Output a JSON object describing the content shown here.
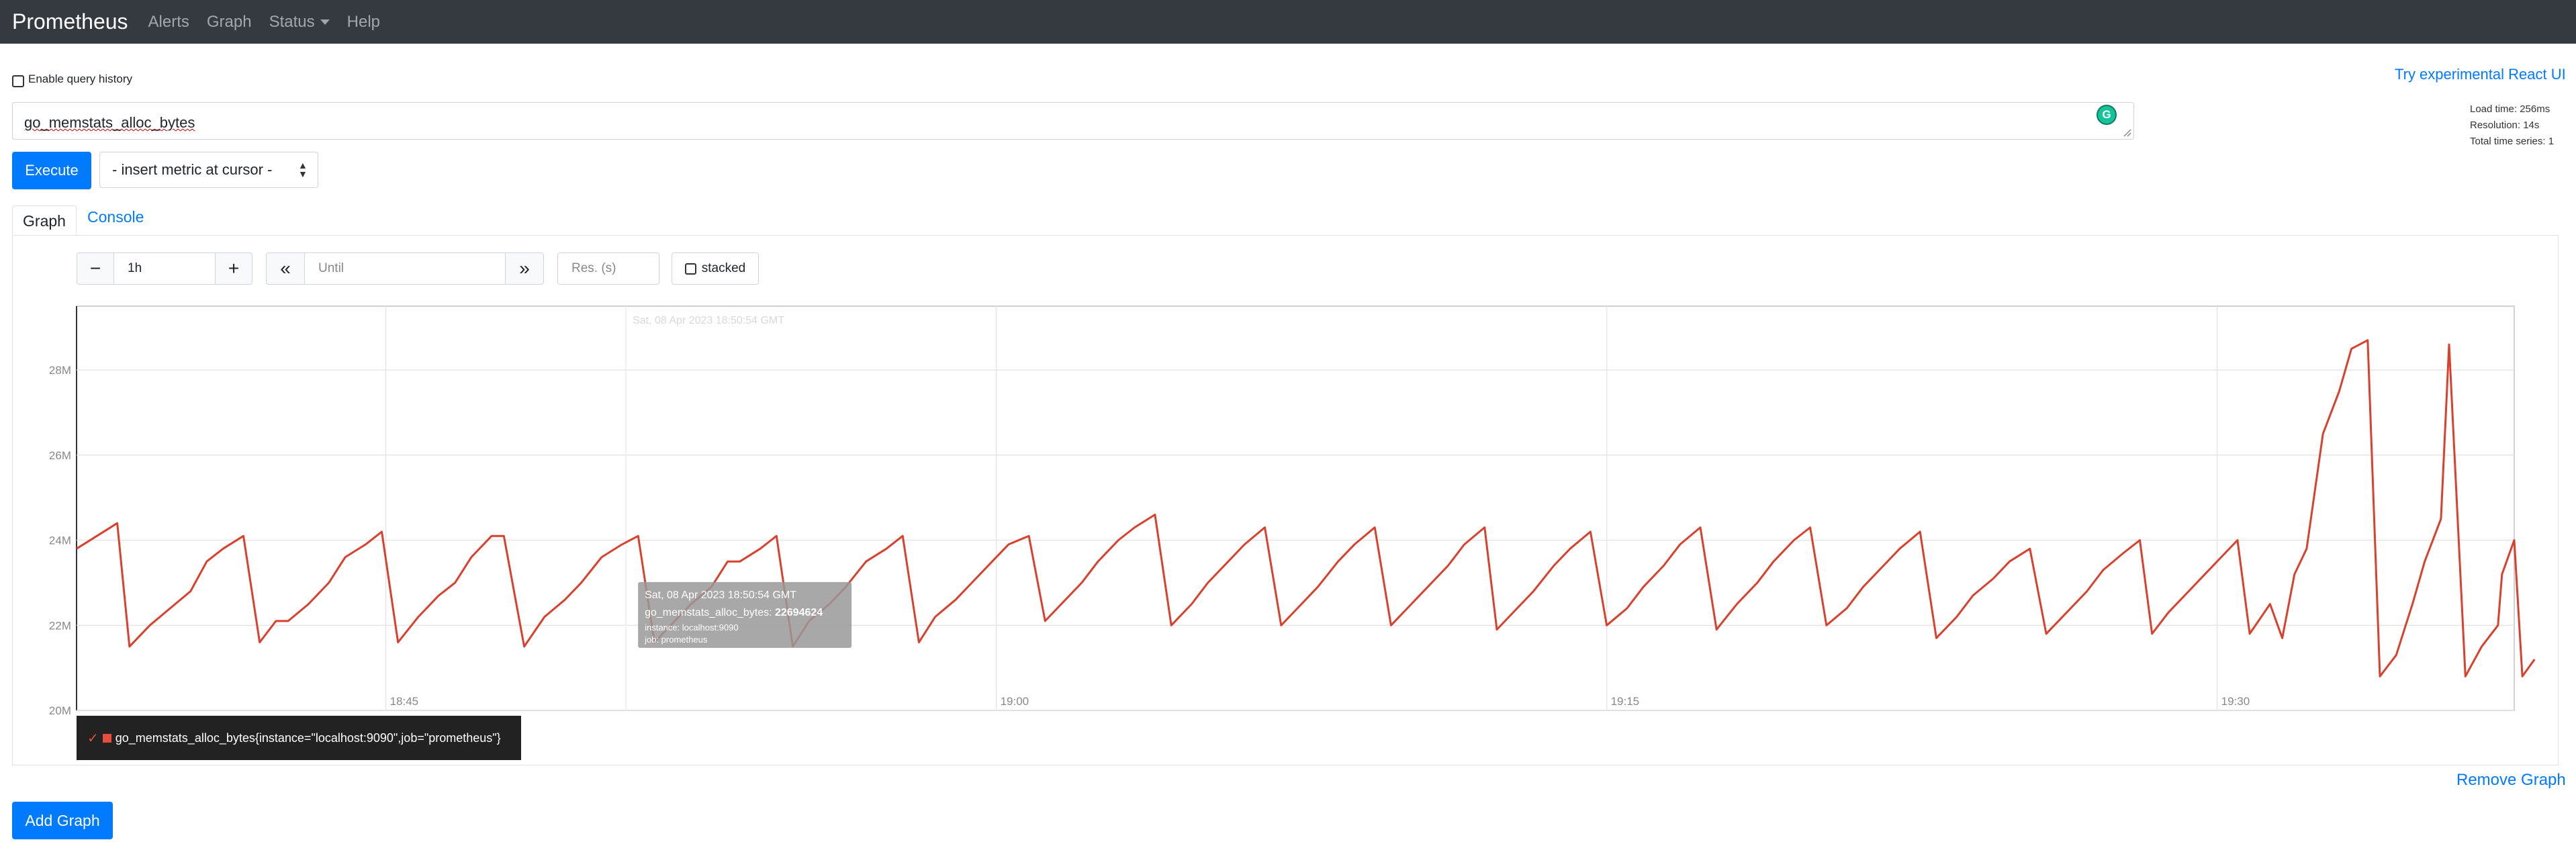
{
  "navbar": {
    "brand": "Prometheus",
    "links": [
      "Alerts",
      "Graph",
      "Status",
      "Help"
    ]
  },
  "query_history_label": "Enable query history",
  "react_ui_link": "Try experimental React UI",
  "stats": {
    "load_time": "Load time: 256ms",
    "resolution": "Resolution: 14s",
    "total_series": "Total time series: 1"
  },
  "expression": "go_memstats_alloc_bytes",
  "execute_label": "Execute",
  "metric_select": "- insert metric at cursor -",
  "tabs": {
    "graph": "Graph",
    "console": "Console"
  },
  "controls": {
    "minus": "−",
    "range": "1h",
    "plus": "+",
    "back": "«",
    "until_placeholder": "Until",
    "forward": "»",
    "res_placeholder": "Res. (s)",
    "stacked": "stacked"
  },
  "remove_graph": "Remove Graph",
  "add_graph": "Add Graph",
  "colors": {
    "series": "#d9412e",
    "accent": "#007bff",
    "navbar": "#343a40"
  },
  "chart_data": {
    "type": "line",
    "x_tick_labels": [
      "18:45",
      "19:00",
      "19:15",
      "19:30"
    ],
    "x_ticks_minutes": [
      45,
      60,
      75,
      90
    ],
    "x_range_minutes": [
      37.4,
      97.3
    ],
    "y_tick_labels": [
      "20M",
      "22M",
      "24M",
      "26M",
      "28M"
    ],
    "y_ticks": [
      20,
      22,
      24,
      26,
      28
    ],
    "ylim": [
      20,
      29.5
    ],
    "y_unit": "M bytes",
    "grid": true,
    "hover_time_label": "Sat, 08 Apr 2023 18:50:54 GMT",
    "tooltip": {
      "time": "Sat, 08 Apr 2023 18:50:54 GMT",
      "metric": "go_memstats_alloc_bytes:",
      "value": "22694624",
      "instance": "instance: localhost:9090",
      "job": "job: prometheus"
    },
    "series": [
      {
        "name": "go_memstats_alloc_bytes{instance=\"localhost:9090\",job=\"prometheus\"}",
        "points": [
          [
            37.4,
            23.8
          ],
          [
            37.9,
            24.1
          ],
          [
            38.4,
            24.4
          ],
          [
            38.7,
            21.5
          ],
          [
            39.2,
            22.0
          ],
          [
            39.7,
            22.4
          ],
          [
            40.2,
            22.8
          ],
          [
            40.6,
            23.5
          ],
          [
            41.0,
            23.8
          ],
          [
            41.5,
            24.1
          ],
          [
            41.9,
            21.6
          ],
          [
            42.3,
            22.1
          ],
          [
            42.6,
            22.1
          ],
          [
            43.1,
            22.5
          ],
          [
            43.6,
            23.0
          ],
          [
            44.0,
            23.6
          ],
          [
            44.5,
            23.9
          ],
          [
            44.9,
            24.2
          ],
          [
            45.3,
            21.6
          ],
          [
            45.8,
            22.2
          ],
          [
            46.3,
            22.7
          ],
          [
            46.7,
            23.0
          ],
          [
            47.1,
            23.6
          ],
          [
            47.6,
            24.1
          ],
          [
            47.9,
            24.1
          ],
          [
            48.4,
            21.5
          ],
          [
            48.9,
            22.2
          ],
          [
            49.4,
            22.6
          ],
          [
            49.8,
            23.0
          ],
          [
            50.3,
            23.6
          ],
          [
            50.8,
            23.9
          ],
          [
            51.2,
            24.1
          ],
          [
            51.6,
            21.6
          ],
          [
            52.1,
            22.1
          ],
          [
            52.5,
            22.5
          ],
          [
            53.0,
            22.9
          ],
          [
            53.4,
            23.5
          ],
          [
            53.7,
            23.5
          ],
          [
            54.2,
            23.8
          ],
          [
            54.6,
            24.1
          ],
          [
            55.0,
            21.5
          ],
          [
            55.4,
            22.1
          ],
          [
            55.9,
            22.5
          ],
          [
            56.3,
            22.9
          ],
          [
            56.8,
            23.5
          ],
          [
            57.3,
            23.8
          ],
          [
            57.7,
            24.1
          ],
          [
            58.1,
            21.6
          ],
          [
            58.5,
            22.2
          ],
          [
            59.0,
            22.6
          ],
          [
            59.4,
            23.0
          ],
          [
            59.9,
            23.5
          ],
          [
            60.3,
            23.9
          ],
          [
            60.8,
            24.1
          ],
          [
            61.2,
            22.1
          ],
          [
            61.7,
            22.6
          ],
          [
            62.1,
            23.0
          ],
          [
            62.5,
            23.5
          ],
          [
            63.0,
            24.0
          ],
          [
            63.4,
            24.3
          ],
          [
            63.9,
            24.6
          ],
          [
            64.3,
            22.0
          ],
          [
            64.8,
            22.5
          ],
          [
            65.2,
            23.0
          ],
          [
            65.7,
            23.5
          ],
          [
            66.1,
            23.9
          ],
          [
            66.6,
            24.3
          ],
          [
            67.0,
            22.0
          ],
          [
            67.5,
            22.5
          ],
          [
            67.9,
            22.9
          ],
          [
            68.4,
            23.5
          ],
          [
            68.8,
            23.9
          ],
          [
            69.3,
            24.3
          ],
          [
            69.7,
            22.0
          ],
          [
            70.2,
            22.5
          ],
          [
            70.6,
            22.9
          ],
          [
            71.1,
            23.4
          ],
          [
            71.5,
            23.9
          ],
          [
            72.0,
            24.3
          ],
          [
            72.3,
            21.9
          ],
          [
            72.8,
            22.4
          ],
          [
            73.2,
            22.8
          ],
          [
            73.7,
            23.4
          ],
          [
            74.1,
            23.8
          ],
          [
            74.6,
            24.2
          ],
          [
            75.0,
            22.0
          ],
          [
            75.5,
            22.4
          ],
          [
            75.9,
            22.9
          ],
          [
            76.4,
            23.4
          ],
          [
            76.8,
            23.9
          ],
          [
            77.3,
            24.3
          ],
          [
            77.7,
            21.9
          ],
          [
            78.2,
            22.5
          ],
          [
            78.7,
            23.0
          ],
          [
            79.1,
            23.5
          ],
          [
            79.6,
            24.0
          ],
          [
            80.0,
            24.3
          ],
          [
            80.4,
            22.0
          ],
          [
            80.9,
            22.4
          ],
          [
            81.3,
            22.9
          ],
          [
            81.8,
            23.4
          ],
          [
            82.2,
            23.8
          ],
          [
            82.7,
            24.2
          ],
          [
            83.1,
            21.7
          ],
          [
            83.6,
            22.2
          ],
          [
            84.0,
            22.7
          ],
          [
            84.5,
            23.1
          ],
          [
            84.9,
            23.5
          ],
          [
            85.4,
            23.8
          ],
          [
            85.8,
            21.8
          ],
          [
            86.3,
            22.3
          ],
          [
            86.8,
            22.8
          ],
          [
            87.2,
            23.3
          ],
          [
            87.7,
            23.7
          ],
          [
            88.1,
            24.0
          ],
          [
            88.4,
            21.8
          ],
          [
            88.8,
            22.3
          ],
          [
            89.3,
            22.8
          ],
          [
            89.7,
            23.2
          ],
          [
            90.2,
            23.7
          ],
          [
            90.5,
            24.0
          ],
          [
            90.8,
            21.8
          ],
          [
            91.3,
            22.5
          ],
          [
            91.6,
            21.7
          ],
          [
            91.9,
            23.2
          ],
          [
            92.2,
            23.8
          ],
          [
            92.6,
            26.5
          ],
          [
            93.0,
            27.5
          ],
          [
            93.3,
            28.5
          ],
          [
            93.7,
            28.7
          ],
          [
            94.0,
            20.8
          ],
          [
            94.4,
            21.3
          ],
          [
            94.8,
            22.5
          ],
          [
            95.1,
            23.5
          ],
          [
            95.5,
            24.5
          ],
          [
            95.7,
            28.6
          ],
          [
            96.1,
            20.8
          ],
          [
            96.5,
            21.5
          ],
          [
            96.9,
            22.0
          ],
          [
            97.0,
            23.2
          ],
          [
            97.3,
            24.0
          ],
          [
            97.5,
            20.8
          ],
          [
            97.8,
            21.2
          ]
        ]
      }
    ]
  }
}
